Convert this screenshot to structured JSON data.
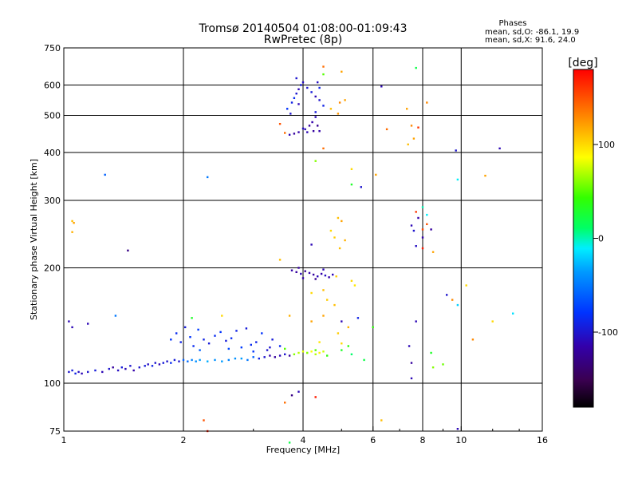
{
  "chart_data": {
    "type": "scatter",
    "title": "Tromsø 20140504 01:08:00-01:09:43",
    "subtitle": "RwPretec (8p)",
    "xlabel": "Frequency [MHz]",
    "ylabel": "Stationary phase Virtual Height [km]",
    "x_scale": "log2",
    "y_scale": "log",
    "xlim": [
      1,
      16
    ],
    "ylim": [
      75,
      750
    ],
    "x_ticks": [
      1,
      2,
      4,
      6,
      8,
      10,
      16
    ],
    "y_ticks": [
      75,
      100,
      200,
      300,
      400,
      500,
      600,
      750
    ],
    "x_gridlines": [
      2,
      4,
      6,
      8,
      10
    ],
    "y_gridlines": [
      100,
      200,
      300,
      400,
      500,
      600
    ],
    "info": {
      "heading": "Phases",
      "line1": "mean, sd,O: -86.1, 19.9",
      "line2": "mean, sd,X:  91.6, 24.0"
    },
    "colorbar": {
      "label": "[deg]",
      "min": -180,
      "max": 180,
      "ticks": [
        100,
        0,
        -100
      ]
    },
    "series": [
      {
        "points": [
          [
            1.03,
            107,
            -100
          ],
          [
            1.05,
            108,
            -95
          ],
          [
            1.07,
            106,
            -90
          ],
          [
            1.09,
            107,
            -105
          ],
          [
            1.11,
            106,
            -110
          ],
          [
            1.15,
            107,
            -100
          ],
          [
            1.2,
            108,
            -95
          ],
          [
            1.25,
            107,
            -110
          ],
          [
            1.3,
            109,
            -100
          ],
          [
            1.33,
            110,
            -120
          ],
          [
            1.37,
            108,
            -105
          ],
          [
            1.4,
            110,
            -95
          ],
          [
            1.43,
            109,
            -110
          ],
          [
            1.47,
            111,
            -100
          ],
          [
            1.5,
            108,
            -115
          ],
          [
            1.55,
            110,
            -100
          ],
          [
            1.6,
            111,
            -95
          ],
          [
            1.63,
            112,
            -105
          ],
          [
            1.67,
            111,
            -90
          ],
          [
            1.7,
            113,
            -100
          ],
          [
            1.74,
            112,
            -110
          ],
          [
            1.78,
            113,
            -95
          ],
          [
            1.82,
            114,
            -100
          ],
          [
            1.86,
            113,
            -85
          ],
          [
            1.9,
            115,
            -95
          ],
          [
            1.95,
            114,
            -100
          ],
          [
            2.0,
            115,
            -60
          ],
          [
            2.05,
            114,
            -55
          ],
          [
            2.1,
            115,
            -45
          ],
          [
            2.15,
            114,
            -40
          ],
          [
            2.2,
            115,
            -35
          ],
          [
            2.3,
            114,
            -30
          ],
          [
            2.4,
            115,
            -40
          ],
          [
            2.5,
            114,
            -35
          ],
          [
            2.6,
            115,
            -45
          ],
          [
            2.7,
            116,
            -40
          ],
          [
            2.8,
            116,
            -35
          ],
          [
            2.9,
            115,
            -50
          ],
          [
            3.0,
            117,
            -60
          ],
          [
            3.1,
            116,
            -90
          ],
          [
            3.2,
            117,
            -100
          ],
          [
            3.3,
            118,
            -115
          ],
          [
            3.4,
            117,
            -120
          ],
          [
            3.5,
            118,
            -110
          ],
          [
            3.6,
            119,
            -100
          ],
          [
            3.7,
            118,
            -120
          ],
          [
            3.8,
            119,
            60
          ],
          [
            3.9,
            120,
            70
          ],
          [
            4.0,
            121,
            80
          ],
          [
            4.1,
            120,
            65
          ],
          [
            4.2,
            121,
            85
          ],
          [
            4.3,
            119,
            70
          ],
          [
            4.4,
            120,
            90
          ],
          [
            4.5,
            121,
            75
          ],
          [
            1.86,
            130,
            -80
          ],
          [
            1.92,
            135,
            -85
          ],
          [
            1.97,
            128,
            -90
          ],
          [
            2.02,
            140,
            -95
          ],
          [
            2.08,
            132,
            -80
          ],
          [
            2.12,
            125,
            -85
          ],
          [
            2.18,
            138,
            -75
          ],
          [
            2.25,
            130,
            -90
          ],
          [
            2.32,
            127,
            -95
          ],
          [
            2.4,
            133,
            -85
          ],
          [
            2.48,
            136,
            -80
          ],
          [
            2.56,
            129,
            -95
          ],
          [
            2.64,
            131,
            -85
          ],
          [
            2.72,
            137,
            -90
          ],
          [
            2.8,
            124,
            -75
          ],
          [
            2.88,
            139,
            -95
          ],
          [
            2.96,
            126,
            -85
          ],
          [
            3.05,
            128,
            -90
          ],
          [
            3.15,
            135,
            -80
          ],
          [
            3.25,
            122,
            -100
          ],
          [
            3.35,
            130,
            -95
          ],
          [
            3.5,
            125,
            -85
          ],
          [
            2.2,
            122,
            -60
          ],
          [
            2.6,
            123,
            -70
          ],
          [
            3.0,
            121,
            -80
          ],
          [
            3.3,
            124,
            -100
          ],
          [
            3.75,
            197,
            -115
          ],
          [
            3.85,
            195,
            -120
          ],
          [
            3.95,
            193,
            -110
          ],
          [
            4.05,
            196,
            -125
          ],
          [
            4.15,
            194,
            -115
          ],
          [
            4.25,
            192,
            -120
          ],
          [
            4.35,
            190,
            -110
          ],
          [
            4.45,
            193,
            -115
          ],
          [
            4.55,
            191,
            -105
          ],
          [
            4.65,
            189,
            -115
          ],
          [
            4.75,
            192,
            -110
          ],
          [
            3.9,
            200,
            -120
          ],
          [
            4.0,
            188,
            -115
          ],
          [
            4.3,
            187,
            -125
          ],
          [
            4.5,
            198,
            -110
          ],
          [
            4.2,
            230,
            -110
          ],
          [
            3.7,
            445,
            -110
          ],
          [
            3.8,
            448,
            -120
          ],
          [
            3.9,
            452,
            -115
          ],
          [
            4.05,
            460,
            -110
          ],
          [
            4.15,
            470,
            -120
          ],
          [
            4.22,
            480,
            -115
          ],
          [
            4.3,
            495,
            -110
          ],
          [
            4.35,
            470,
            -125
          ],
          [
            4.4,
            455,
            -115
          ],
          [
            4.25,
            455,
            -120
          ],
          [
            4.1,
            452,
            -110
          ],
          [
            4.0,
            462,
            -105
          ],
          [
            3.65,
            520,
            -80
          ],
          [
            3.75,
            540,
            -90
          ],
          [
            3.8,
            555,
            -85
          ],
          [
            3.85,
            570,
            -100
          ],
          [
            3.9,
            585,
            -110
          ],
          [
            3.95,
            600,
            -95
          ],
          [
            4.0,
            610,
            -105
          ],
          [
            4.1,
            590,
            -100
          ],
          [
            4.2,
            575,
            -95
          ],
          [
            4.3,
            560,
            -110
          ],
          [
            4.4,
            548,
            -100
          ],
          [
            4.5,
            530,
            -90
          ],
          [
            3.72,
            505,
            -100
          ],
          [
            3.9,
            535,
            -110
          ],
          [
            4.35,
            610,
            -105
          ],
          [
            4.3,
            510,
            -95
          ],
          [
            4.4,
            590,
            -90
          ],
          [
            3.85,
            625,
            -100
          ],
          [
            1.05,
            140,
            -110
          ],
          [
            1.03,
            145,
            -110
          ],
          [
            1.15,
            143,
            -110
          ],
          [
            1.35,
            150,
            -50
          ],
          [
            1.45,
            222,
            -130
          ],
          [
            2.3,
            345,
            -50
          ],
          [
            1.27,
            350,
            -60
          ],
          [
            6.3,
            595,
            -110
          ],
          [
            5.6,
            325,
            -100
          ],
          [
            7.8,
            270,
            -115
          ],
          [
            8.4,
            252,
            -120
          ],
          [
            7.5,
            258,
            -110
          ],
          [
            7.6,
            250,
            -100
          ],
          [
            7.7,
            228,
            -105
          ],
          [
            8.0,
            240,
            -115
          ],
          [
            7.4,
            125,
            -110
          ],
          [
            7.5,
            113,
            -120
          ],
          [
            7.5,
            103,
            -110
          ],
          [
            9.8,
            76,
            -110
          ],
          [
            9.7,
            405,
            -100
          ],
          [
            12.5,
            410,
            -110
          ],
          [
            9.2,
            170,
            -100
          ],
          [
            3.75,
            93,
            -130
          ],
          [
            3.9,
            95,
            -110
          ],
          [
            5.0,
            145,
            -110
          ],
          [
            5.5,
            148,
            -90
          ],
          [
            7.7,
            145,
            -110
          ]
        ]
      },
      {
        "points": [
          [
            4.9,
            270,
            110
          ],
          [
            5.0,
            265,
            120
          ],
          [
            4.8,
            240,
            105
          ],
          [
            5.1,
            236,
            115
          ],
          [
            4.7,
            250,
            100
          ],
          [
            4.95,
            225,
            110
          ],
          [
            4.85,
            190,
            105
          ],
          [
            5.3,
            185,
            100
          ],
          [
            5.4,
            180,
            95
          ],
          [
            4.5,
            175,
            110
          ],
          [
            4.6,
            165,
            105
          ],
          [
            4.2,
            172,
            100
          ],
          [
            4.8,
            160,
            110
          ],
          [
            4.5,
            150,
            120
          ],
          [
            5.2,
            140,
            115
          ],
          [
            4.9,
            135,
            105
          ],
          [
            4.4,
            128,
            95
          ],
          [
            5.0,
            127,
            100
          ],
          [
            4.2,
            145,
            120
          ],
          [
            3.7,
            150,
            115
          ],
          [
            3.5,
            210,
            110
          ],
          [
            4.5,
            670,
            140
          ],
          [
            5.0,
            650,
            120
          ],
          [
            4.9,
            505,
            125
          ],
          [
            4.7,
            520,
            110
          ],
          [
            4.95,
            540,
            130
          ],
          [
            5.1,
            548,
            120
          ],
          [
            4.5,
            410,
            140
          ],
          [
            3.5,
            475,
            150
          ],
          [
            3.6,
            450,
            140
          ],
          [
            6.5,
            460,
            140
          ],
          [
            7.8,
            465,
            160
          ],
          [
            7.5,
            470,
            130
          ],
          [
            7.6,
            435,
            120
          ],
          [
            7.3,
            520,
            120
          ],
          [
            7.35,
            420,
            110
          ],
          [
            8.2,
            540,
            130
          ],
          [
            7.7,
            280,
            160
          ],
          [
            8.2,
            260,
            150
          ],
          [
            8.0,
            252,
            155
          ],
          [
            8.0,
            225,
            170
          ],
          [
            8.5,
            220,
            120
          ],
          [
            1.05,
            265,
            110
          ],
          [
            1.05,
            248,
            115
          ],
          [
            1.06,
            262,
            120
          ],
          [
            2.5,
            150,
            100
          ],
          [
            2.3,
            75,
            170
          ],
          [
            2.25,
            80,
            150
          ],
          [
            4.3,
            92,
            170
          ],
          [
            3.6,
            89,
            140
          ],
          [
            9.5,
            165,
            130
          ],
          [
            10.3,
            180,
            100
          ],
          [
            10.7,
            130,
            130
          ],
          [
            12.0,
            145,
            100
          ],
          [
            11.5,
            348,
            120
          ],
          [
            6.3,
            80,
            110
          ],
          [
            6.1,
            350,
            120
          ],
          [
            5.3,
            362,
            100
          ]
        ]
      },
      {
        "points": [
          [
            4.1,
            120,
            60
          ],
          [
            4.3,
            122,
            50
          ],
          [
            4.6,
            118,
            40
          ],
          [
            5.0,
            122,
            30
          ],
          [
            5.3,
            119,
            10
          ],
          [
            5.7,
            115,
            20
          ],
          [
            5.2,
            125,
            40
          ],
          [
            3.6,
            123,
            50
          ],
          [
            6.0,
            140,
            40
          ],
          [
            8.5,
            110,
            60
          ],
          [
            9.0,
            112,
            55
          ],
          [
            8.4,
            120,
            30
          ],
          [
            7.7,
            665,
            20
          ],
          [
            5.3,
            330,
            30
          ],
          [
            4.5,
            640,
            50
          ],
          [
            4.3,
            380,
            60
          ],
          [
            9.8,
            340,
            -10
          ],
          [
            9.8,
            160,
            -20
          ],
          [
            8.2,
            275,
            -10
          ],
          [
            8.0,
            288,
            0
          ],
          [
            2.1,
            148,
            30
          ],
          [
            13.5,
            152,
            -15
          ],
          [
            3.7,
            70,
            20
          ]
        ]
      }
    ]
  }
}
